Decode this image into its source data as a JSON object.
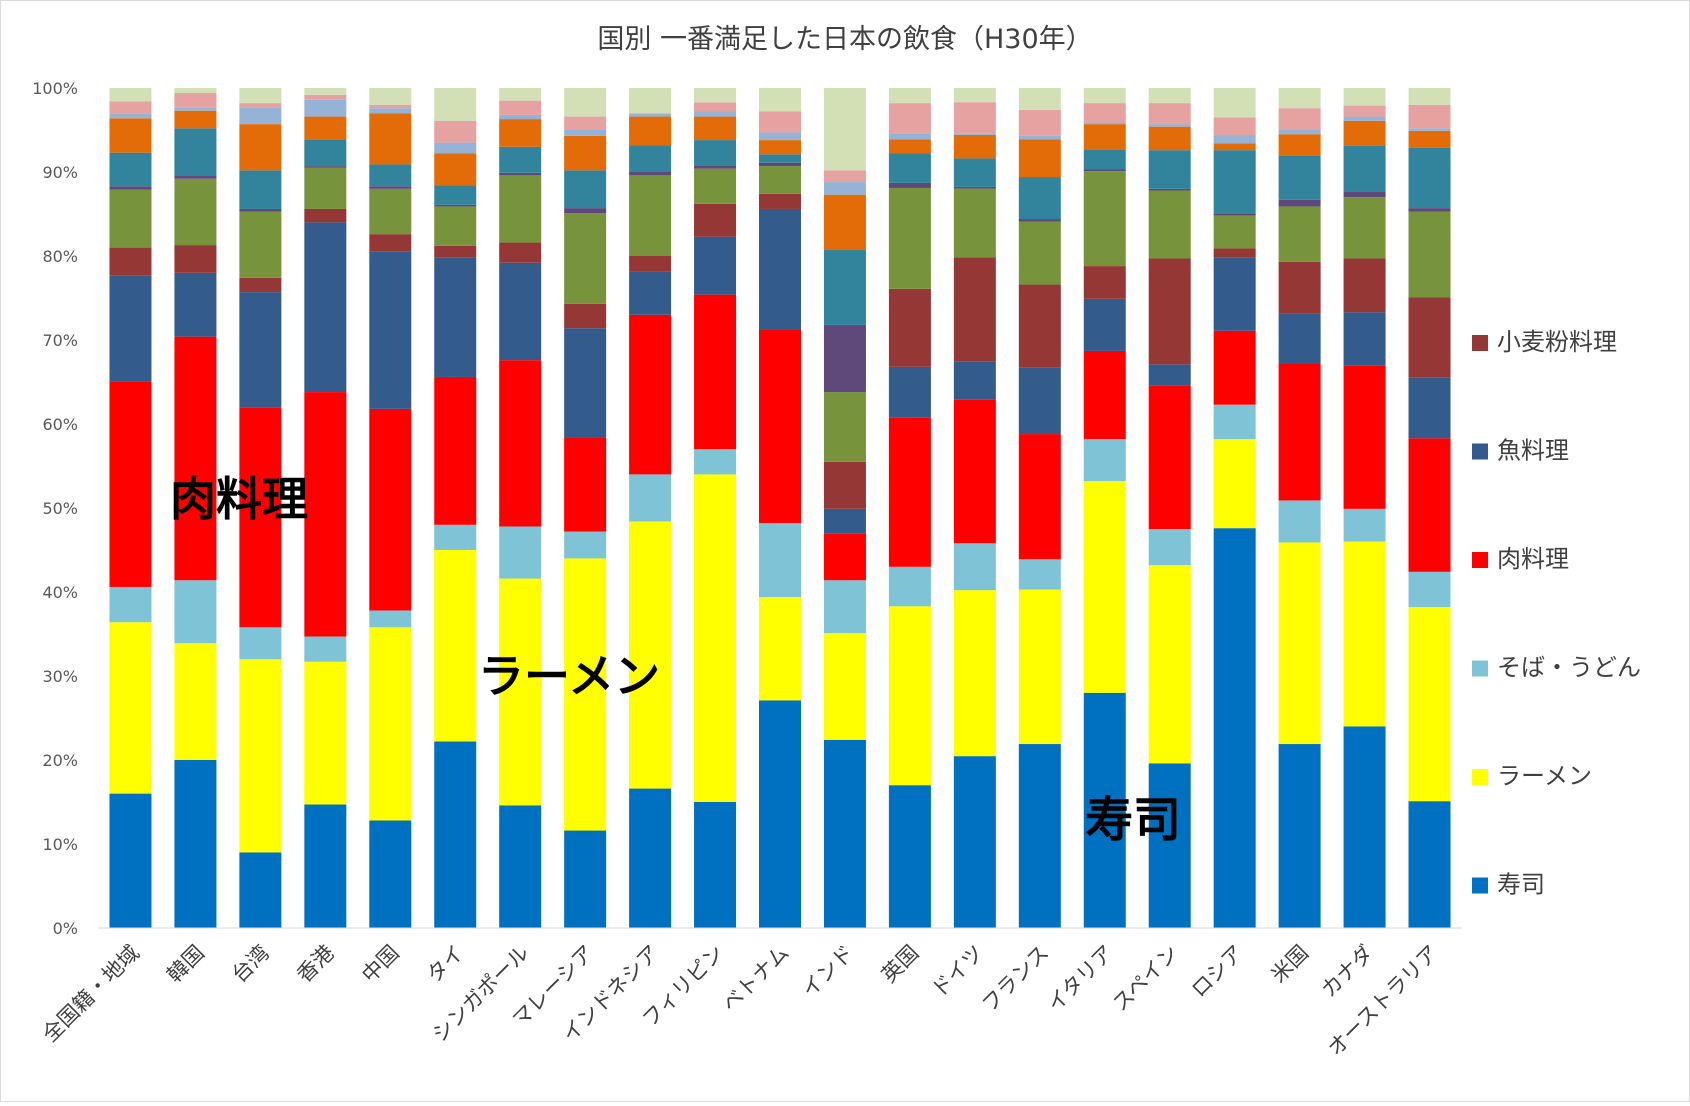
{
  "chart_data": {
    "type": "bar",
    "stacked": true,
    "normalized": true,
    "title": "国別 一番満足した日本の飲食（H30年）",
    "xlabel": "",
    "ylabel": "",
    "ylim": [
      0,
      100
    ],
    "yticks": [
      "0%",
      "10%",
      "20%",
      "30%",
      "40%",
      "50%",
      "60%",
      "70%",
      "80%",
      "90%",
      "100%"
    ],
    "grid": false,
    "legend_position": "right",
    "categories": [
      "全国籍・地域",
      "韓国",
      "台湾",
      "香港",
      "中国",
      "タイ",
      "シンガポール",
      "マレーシア",
      "インドネシア",
      "フィリピン",
      "ベトナム",
      "インド",
      "英国",
      "ドイツ",
      "フランス",
      "イタリア",
      "スペイン",
      "ロシア",
      "米国",
      "カナダ",
      "オーストラリア"
    ],
    "legend": [
      "小麦粉料理",
      "魚料理",
      "肉料理",
      "そば・うどん",
      "ラーメン",
      "寿司"
    ],
    "annotations": [
      "肉料理",
      "ラーメン",
      "寿司"
    ],
    "series": [
      {
        "name": "寿司",
        "color": "#0070c0",
        "values": [
          16.0,
          20.0,
          9.0,
          14.7,
          12.8,
          22.2,
          14.6,
          11.6,
          16.6,
          15.0,
          27.1,
          22.4,
          17.0,
          20.5,
          21.9,
          28.0,
          19.6,
          47.6,
          21.9,
          24.0,
          15.1
        ]
      },
      {
        "name": "ラーメン",
        "color": "#ffff00",
        "values": [
          20.4,
          13.9,
          23.0,
          17.0,
          23.0,
          22.8,
          27.0,
          32.4,
          31.8,
          39.0,
          12.3,
          12.7,
          21.3,
          19.8,
          18.4,
          25.2,
          23.6,
          10.6,
          24.0,
          22.0,
          23.1
        ]
      },
      {
        "name": "そば・うどん",
        "color": "#7ec4d6",
        "values": [
          4.2,
          7.5,
          3.8,
          3.0,
          2.0,
          3.0,
          6.2,
          3.2,
          5.6,
          3.0,
          8.8,
          6.3,
          4.7,
          5.6,
          3.6,
          5.0,
          4.3,
          4.1,
          5.0,
          3.9,
          4.2
        ]
      },
      {
        "name": "肉料理",
        "color": "#ff0000",
        "values": [
          24.5,
          29.0,
          26.2,
          29.1,
          24.0,
          17.6,
          19.8,
          11.2,
          19.0,
          18.4,
          23.1,
          5.6,
          17.8,
          17.1,
          14.9,
          10.5,
          17.1,
          8.8,
          16.3,
          17.1,
          15.9
        ]
      },
      {
        "name": "魚料理",
        "color": "#335b8c",
        "values": [
          12.6,
          7.6,
          13.7,
          20.2,
          18.7,
          14.2,
          11.6,
          13.0,
          5.2,
          6.9,
          14.3,
          2.9,
          6.0,
          4.6,
          7.9,
          6.2,
          2.5,
          8.7,
          6.0,
          6.3,
          7.2
        ]
      },
      {
        "name": "小麦粉料理",
        "color": "#953735",
        "values": [
          3.3,
          3.3,
          1.7,
          1.6,
          2.1,
          1.4,
          2.4,
          2.9,
          1.8,
          3.9,
          1.8,
          5.6,
          9.3,
          12.4,
          9.9,
          3.9,
          12.6,
          1.1,
          6.1,
          6.4,
          9.6
        ]
      },
      {
        "name": "",
        "color": "#77933c",
        "values": [
          6.9,
          7.9,
          7.9,
          4.9,
          5.4,
          4.7,
          8.0,
          10.8,
          9.6,
          4.2,
          3.3,
          8.3,
          12.0,
          8.2,
          7.5,
          11.3,
          8.1,
          3.9,
          6.6,
          7.3,
          10.2
        ]
      },
      {
        "name": "",
        "color": "#5f497a",
        "values": [
          0.4,
          0.4,
          0.3,
          0.2,
          0.3,
          0.2,
          0.3,
          0.6,
          0.4,
          0.4,
          0.4,
          8.0,
          0.6,
          0.2,
          0.3,
          0.2,
          0.2,
          0.2,
          0.8,
          0.7,
          0.4
        ]
      },
      {
        "name": "",
        "color": "#31849b",
        "values": [
          4.0,
          5.6,
          4.6,
          3.2,
          2.6,
          2.3,
          3.1,
          4.5,
          3.2,
          3.0,
          1.0,
          9.0,
          3.5,
          3.4,
          5.0,
          2.4,
          4.6,
          7.6,
          5.3,
          5.4,
          7.2
        ]
      },
      {
        "name": "",
        "color": "#e36c09",
        "values": [
          4.1,
          2.1,
          5.5,
          2.7,
          6.1,
          3.8,
          3.3,
          4.1,
          3.4,
          2.8,
          1.7,
          6.5,
          1.7,
          2.8,
          4.5,
          3.0,
          2.8,
          0.8,
          2.5,
          3.0,
          2.0
        ]
      },
      {
        "name": "",
        "color": "#95b3d7",
        "values": [
          0.6,
          0.4,
          2.0,
          2.0,
          0.6,
          1.3,
          0.5,
          0.8,
          0.3,
          0.6,
          0.9,
          1.5,
          0.7,
          0.2,
          0.4,
          0.2,
          0.3,
          1.0,
          0.5,
          0.5,
          0.3
        ]
      },
      {
        "name": "",
        "color": "#e6a1a1",
        "values": [
          1.4,
          1.7,
          0.5,
          0.6,
          0.4,
          2.6,
          1.7,
          1.5,
          0.1,
          1.1,
          2.5,
          1.4,
          3.6,
          3.7,
          3.1,
          2.3,
          2.5,
          2.1,
          2.6,
          1.3,
          2.8
        ]
      },
      {
        "name": "",
        "color": "#d3e0b5",
        "values": [
          1.6,
          0.6,
          1.8,
          0.8,
          2.0,
          3.9,
          1.5,
          3.4,
          3.0,
          1.7,
          2.8,
          9.8,
          1.8,
          1.7,
          2.6,
          1.8,
          1.8,
          3.5,
          2.4,
          2.1,
          2.0
        ]
      }
    ]
  }
}
